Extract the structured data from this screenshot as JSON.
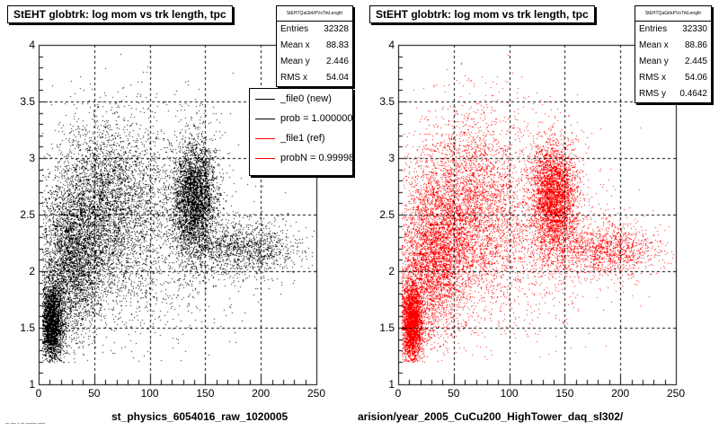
{
  "chart_data": [
    {
      "type": "scatter",
      "title": "StEHT globtrk: log mom vs trk length, tpc",
      "stats_name": "StEHTQaGtrkPVsTrkLength",
      "stats": [
        {
          "label": "Entries",
          "value": "32328"
        },
        {
          "label": "Mean x",
          "value": "88.83"
        },
        {
          "label": "Mean y",
          "value": "2.446"
        },
        {
          "label": "RMS x",
          "value": "54.04"
        }
      ],
      "legend": [
        {
          "label": "_file0 (new)",
          "color": "#000000"
        },
        {
          "label": "prob = 1.000000",
          "color": "#000000"
        },
        {
          "label": "_file1 (ref)",
          "color": "#ff0000"
        },
        {
          "label": "probN = 0.99998",
          "color": "#ff0000"
        }
      ],
      "xlabel": "st_physics_6054016_raw_1020005",
      "xlim": [
        0,
        250
      ],
      "ylim": [
        1,
        4
      ],
      "xticks": [
        0,
        50,
        100,
        150,
        200,
        250
      ],
      "yticks": [
        1,
        1.5,
        2,
        2.5,
        3,
        3.5,
        4
      ],
      "grid": true,
      "color": "#000000",
      "clusters": [
        {
          "x": 12,
          "y": 1.55,
          "sx": 5,
          "sy": 0.18,
          "weight": 0.18
        },
        {
          "x": 30,
          "y": 2.1,
          "sx": 15,
          "sy": 0.35,
          "weight": 0.2
        },
        {
          "x": 60,
          "y": 2.55,
          "sx": 25,
          "sy": 0.4,
          "weight": 0.22
        },
        {
          "x": 140,
          "y": 2.65,
          "sx": 10,
          "sy": 0.25,
          "weight": 0.22
        },
        {
          "x": 100,
          "y": 2.4,
          "sx": 40,
          "sy": 0.5,
          "weight": 0.1
        },
        {
          "x": 185,
          "y": 2.2,
          "sx": 25,
          "sy": 0.12,
          "weight": 0.08
        }
      ]
    },
    {
      "type": "scatter",
      "title": "StEHT globtrk: log mom vs trk length, tpc",
      "stats_name": "StEHTQaGtrkPVsTrkLength",
      "stats": [
        {
          "label": "Entries",
          "value": "32330"
        },
        {
          "label": "Mean x",
          "value": "88.86"
        },
        {
          "label": "Mean y",
          "value": "2.445"
        },
        {
          "label": "RMS x",
          "value": "54.06"
        },
        {
          "label": "RMS y",
          "value": "0.4642"
        }
      ],
      "xlabel": "arision/year_2005_CuCu200_HighTower_daq_sl302/",
      "xlim": [
        0,
        250
      ],
      "ylim": [
        1,
        4
      ],
      "xticks": [
        0,
        50,
        100,
        150,
        200,
        250
      ],
      "yticks": [
        1,
        1.5,
        2,
        2.5,
        3,
        3.5,
        4
      ],
      "grid": true,
      "color": "#ff0000",
      "clusters": [
        {
          "x": 12,
          "y": 1.55,
          "sx": 5,
          "sy": 0.18,
          "weight": 0.18
        },
        {
          "x": 30,
          "y": 2.1,
          "sx": 15,
          "sy": 0.35,
          "weight": 0.2
        },
        {
          "x": 60,
          "y": 2.55,
          "sx": 25,
          "sy": 0.4,
          "weight": 0.22
        },
        {
          "x": 140,
          "y": 2.65,
          "sx": 10,
          "sy": 0.25,
          "weight": 0.22
        },
        {
          "x": 100,
          "y": 2.4,
          "sx": 40,
          "sy": 0.5,
          "weight": 0.1
        },
        {
          "x": 185,
          "y": 2.2,
          "sx": 25,
          "sy": 0.12,
          "weight": 0.08
        }
      ]
    }
  ],
  "footer_note": "-- --- - -- ------ ----"
}
